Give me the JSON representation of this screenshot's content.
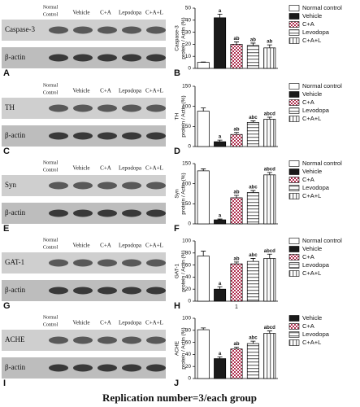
{
  "blots": [
    {
      "panel": "A",
      "lanes": [
        [
          "Normal",
          "Control"
        ],
        "Vehicle",
        "C+A",
        "Lepodopa",
        "C+A+L"
      ],
      "rows": [
        "Caspase-3",
        "β-actin"
      ]
    },
    {
      "panel": "C",
      "lanes": [
        [
          "Normal",
          "Control"
        ],
        "Vehicle",
        "C+A",
        "Lepodopa",
        "C+A+L"
      ],
      "rows": [
        "TH",
        "β-actin"
      ]
    },
    {
      "panel": "E",
      "lanes": [
        [
          "Normal",
          "Control"
        ],
        "Vehicle",
        "C+A",
        "Lepodopa",
        "C+A+L"
      ],
      "rows": [
        "Syn",
        "β-actin"
      ]
    },
    {
      "panel": "G",
      "lanes": [
        [
          "Normal",
          "Control"
        ],
        "Vehicle",
        "C+A",
        "Lepodopa",
        "C+A+L"
      ],
      "rows": [
        "GAT-1",
        "β-actin"
      ]
    },
    {
      "panel": "I",
      "lanes": [
        [
          "Normal",
          "Control"
        ],
        "Vehicle",
        "C+A",
        "Lepodopa",
        "C+A+L"
      ],
      "rows": [
        "ACHE",
        "β-actin"
      ]
    }
  ],
  "chart_data": [
    {
      "type": "bar",
      "panel": "B",
      "ylabel": [
        "Caspase-3",
        "protein / Actin (%)"
      ],
      "ylim": [
        0,
        50
      ],
      "yticks": [
        0,
        10,
        20,
        30,
        40,
        50
      ],
      "series": [
        {
          "name": "Normal control",
          "color": "#ffffff",
          "pattern": "solid",
          "values": [
            5
          ],
          "errors": [
            0.3
          ],
          "annotations": [
            null
          ]
        },
        {
          "name": "Vehicle",
          "color": "#1a1a1a",
          "pattern": "solid",
          "values": [
            42
          ],
          "errors": [
            3
          ],
          "annotations": [
            "a"
          ]
        },
        {
          "name": "C+A",
          "color": "#b03050",
          "pattern": "checker",
          "values": [
            20
          ],
          "errors": [
            2
          ],
          "annotations": [
            "ab"
          ]
        },
        {
          "name": "Levodopa",
          "color": "#777777",
          "pattern": "hlines",
          "values": [
            19
          ],
          "errors": [
            2
          ],
          "annotations": [
            "ab"
          ]
        },
        {
          "name": "C+A+L",
          "color": "#777777",
          "pattern": "vlines",
          "values": [
            17
          ],
          "errors": [
            2.5
          ],
          "annotations": [
            "ab"
          ]
        }
      ]
    },
    {
      "type": "bar",
      "panel": "D",
      "ylabel": [
        "TH",
        "protein / Actin (%)"
      ],
      "ylim": [
        0,
        150
      ],
      "yticks": [
        0,
        50,
        100,
        150
      ],
      "series": [
        {
          "name": "Normal control",
          "color": "#ffffff",
          "pattern": "solid",
          "values": [
            88
          ],
          "errors": [
            8
          ],
          "annotations": [
            null
          ]
        },
        {
          "name": "Vehicle",
          "color": "#1a1a1a",
          "pattern": "solid",
          "values": [
            12
          ],
          "errors": [
            4
          ],
          "annotations": [
            "a"
          ]
        },
        {
          "name": "C+A",
          "color": "#b03050",
          "pattern": "checker",
          "values": [
            30
          ],
          "errors": [
            5
          ],
          "annotations": [
            "ab"
          ]
        },
        {
          "name": "Levodopa",
          "color": "#777777",
          "pattern": "hlines",
          "values": [
            60
          ],
          "errors": [
            4
          ],
          "annotations": [
            "abc"
          ]
        },
        {
          "name": "C+A+L",
          "color": "#777777",
          "pattern": "vlines",
          "values": [
            68
          ],
          "errors": [
            5
          ],
          "annotations": [
            "abcd"
          ]
        }
      ]
    },
    {
      "type": "bar",
      "panel": "F",
      "ylabel": [
        "Syn",
        "protein / Actin (%)"
      ],
      "ylim": [
        0,
        150
      ],
      "yticks": [
        0,
        50,
        100,
        150
      ],
      "series": [
        {
          "name": "Normal control",
          "color": "#ffffff",
          "pattern": "solid",
          "values": [
            132
          ],
          "errors": [
            5
          ],
          "annotations": [
            null
          ]
        },
        {
          "name": "Vehicle",
          "color": "#1a1a1a",
          "pattern": "solid",
          "values": [
            10
          ],
          "errors": [
            2
          ],
          "annotations": [
            "a"
          ]
        },
        {
          "name": "C+A",
          "color": "#b03050",
          "pattern": "checker",
          "values": [
            65
          ],
          "errors": [
            6
          ],
          "annotations": [
            "ab"
          ]
        },
        {
          "name": "Levodopa",
          "color": "#777777",
          "pattern": "hlines",
          "values": [
            78
          ],
          "errors": [
            5
          ],
          "annotations": [
            "abc"
          ]
        },
        {
          "name": "C+A+L",
          "color": "#777777",
          "pattern": "vlines",
          "values": [
            122
          ],
          "errors": [
            6
          ],
          "annotations": [
            "abcd"
          ]
        }
      ]
    },
    {
      "type": "bar",
      "panel": "H",
      "ylabel": [
        "GAT-1",
        "protein / Actin (%)"
      ],
      "xlabel": "1",
      "ylim": [
        0,
        100
      ],
      "yticks": [
        0,
        20,
        40,
        60,
        80,
        100
      ],
      "series": [
        {
          "name": "Normal control",
          "color": "#ffffff",
          "pattern": "solid",
          "values": [
            75
          ],
          "errors": [
            8
          ],
          "annotations": [
            null
          ]
        },
        {
          "name": "Vehicle",
          "color": "#1a1a1a",
          "pattern": "solid",
          "values": [
            20
          ],
          "errors": [
            4
          ],
          "annotations": [
            "a"
          ]
        },
        {
          "name": "C+A",
          "color": "#b03050",
          "pattern": "checker",
          "values": [
            62
          ],
          "errors": [
            3
          ],
          "annotations": [
            "ab"
          ]
        },
        {
          "name": "Levodopa",
          "color": "#777777",
          "pattern": "hlines",
          "values": [
            66
          ],
          "errors": [
            5
          ],
          "annotations": [
            "abc"
          ]
        },
        {
          "name": "C+A+L",
          "color": "#777777",
          "pattern": "vlines",
          "values": [
            71
          ],
          "errors": [
            7
          ],
          "annotations": [
            "abcd"
          ]
        }
      ]
    },
    {
      "type": "bar",
      "panel": "J",
      "ylabel": [
        "ACHE",
        "protein / Actin (%)"
      ],
      "ylim": [
        0,
        100
      ],
      "yticks": [
        0,
        20,
        40,
        60,
        80,
        100
      ],
      "series": [
        {
          "name": null,
          "color": "#ffffff",
          "pattern": "solid",
          "values": [
            81
          ],
          "errors": [
            3
          ],
          "annotations": [
            null
          ]
        },
        {
          "name": "Vehicle",
          "color": "#1a1a1a",
          "pattern": "solid",
          "values": [
            33
          ],
          "errors": [
            3
          ],
          "annotations": [
            "a"
          ]
        },
        {
          "name": "C+A",
          "color": "#b03050",
          "pattern": "checker",
          "values": [
            49
          ],
          "errors": [
            3
          ],
          "annotations": [
            "ab"
          ]
        },
        {
          "name": "Levodopa",
          "color": "#777777",
          "pattern": "hlines",
          "values": [
            58
          ],
          "errors": [
            4
          ],
          "annotations": [
            "abc"
          ]
        },
        {
          "name": "C+A+L",
          "color": "#777777",
          "pattern": "vlines",
          "values": [
            75
          ],
          "errors": [
            4
          ],
          "annotations": [
            "abcd"
          ]
        }
      ]
    }
  ],
  "footer": "Replication number=3/each group"
}
